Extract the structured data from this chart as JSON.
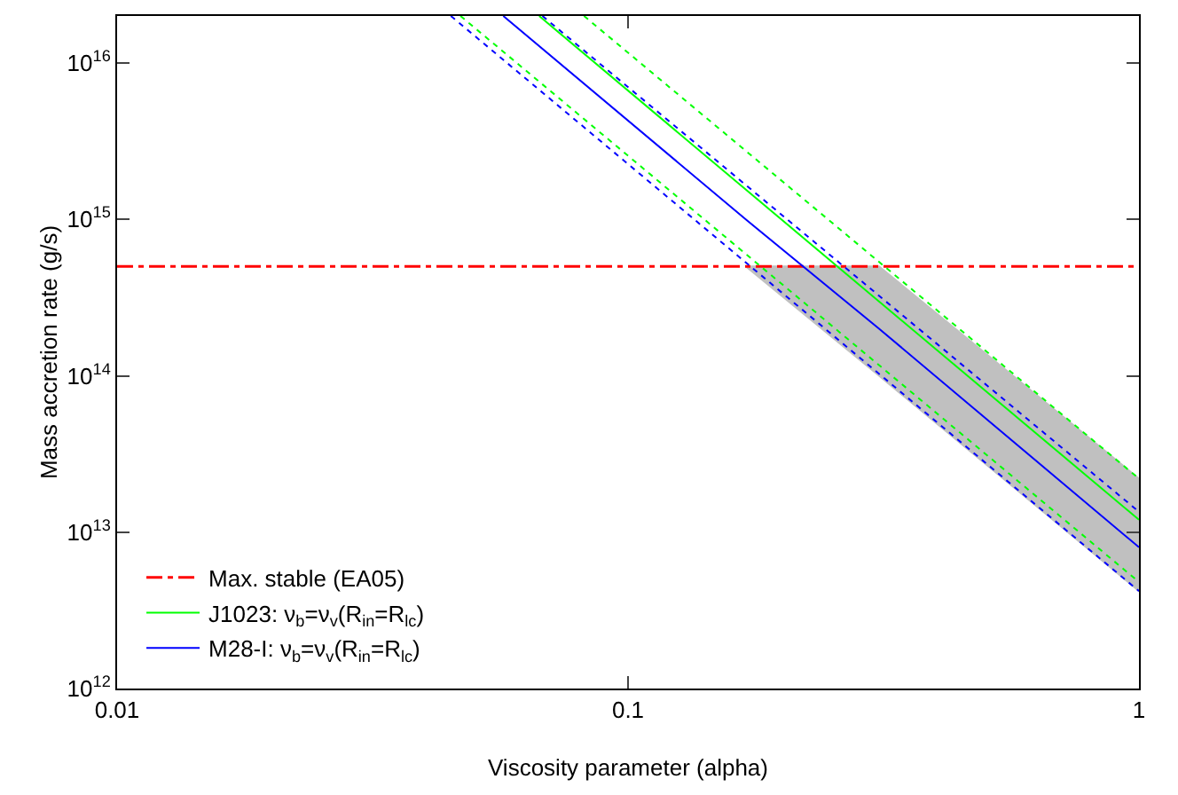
{
  "chart_data": {
    "type": "line",
    "xlabel": "Viscosity parameter (alpha)",
    "ylabel": "Mass accretion rate (g/s)",
    "log": "xy",
    "grid": false,
    "legend": "bottom left",
    "xlim": [
      0.01,
      1
    ],
    "ylim": [
      1000000000000.0,
      2e+16
    ],
    "xticks": [
      0.01,
      0.1,
      1
    ],
    "yticks": [
      {
        "value": 1000000000000.0,
        "label": "10$^{12}$"
      },
      {
        "value": 10000000000000.0,
        "label": "10$^{13}$"
      },
      {
        "value": 100000000000000.0,
        "label": "10$^{14}$"
      },
      {
        "value": 1000000000000000.0,
        "label": "10$^{15}$"
      },
      {
        "value": 1e+16,
        "label": "10$^{16}$"
      }
    ],
    "ref_lines": [
      {
        "axis": "y",
        "value": 500000000000000.0,
        "label": "Max. stable (EA05)",
        "color": "#ff0000",
        "line_style": "dashdot"
      }
    ],
    "series": [
      {
        "name": "J1023: ν$_{b}$=ν$_{v}$(R$_{in}$=R$_{lc}$)",
        "color": "#00ff00",
        "line_style": "solid",
        "x": [
          0.067,
          1
        ],
        "values": [
          2e+16,
          12000000000000.0
        ]
      },
      {
        "name": "M28-I: ν$_{b}$=ν$_{v}$(R$_{in}$=R$_{lc}$)",
        "color": "#0000ff",
        "line_style": "solid",
        "x": [
          0.057,
          0.17,
          0.31,
          1
        ],
        "values": [
          2e+16,
          1000000000000000.0,
          200000000000000.0,
          8000000000000.0
        ],
        "lower": [
          null,
          500000000000000.0,
          100000000000000.0,
          4200000000000.0
        ],
        "upper": [
          null,
          500000000000000.0,
          500000000000000.0,
          22000000000000.0
        ]
      },
      {
        "color": "#00ff00",
        "line_style": "dotted",
        "x": [
          0.082,
          1
        ],
        "values": [
          2e+16,
          22000000000000.0
        ]
      },
      {
        "color": "#00ff00",
        "line_style": "dotted",
        "x": [
          0.047,
          1
        ],
        "values": [
          2e+16,
          4800000000000.0
        ]
      },
      {
        "color": "#0000ff",
        "line_style": "dotted",
        "x": [
          0.068,
          1
        ],
        "values": [
          2e+16,
          13500000000000.0
        ]
      },
      {
        "color": "#0000ff",
        "line_style": "dotted",
        "x": [
          0.045,
          1
        ],
        "values": [
          2e+16,
          4200000000000.0
        ]
      }
    ]
  }
}
